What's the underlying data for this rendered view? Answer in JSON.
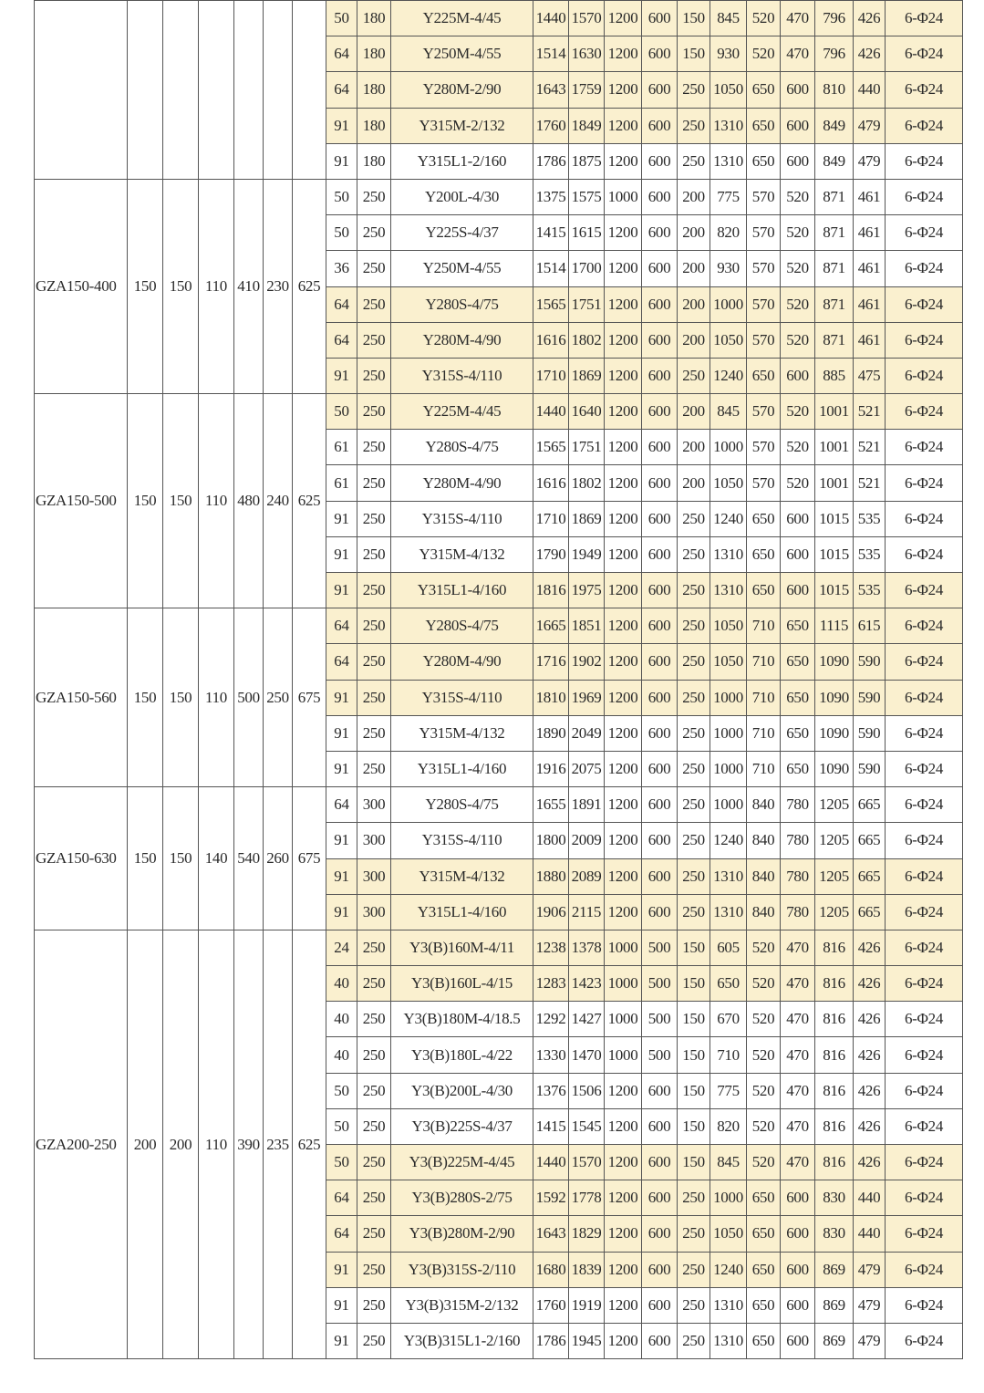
{
  "highlight_color": "#faf0cf",
  "groups": [
    {
      "model": "",
      "left": [
        "",
        "",
        "",
        "",
        "",
        ""
      ],
      "rows": [
        {
          "hl": true,
          "cells": [
            "50",
            "180",
            "Y225M-4/45",
            "1440",
            "1570",
            "1200",
            "600",
            "150",
            "845",
            "520",
            "470",
            "796",
            "426",
            "6-Φ24"
          ]
        },
        {
          "hl": true,
          "cells": [
            "64",
            "180",
            "Y250M-4/55",
            "1514",
            "1630",
            "1200",
            "600",
            "150",
            "930",
            "520",
            "470",
            "796",
            "426",
            "6-Φ24"
          ]
        },
        {
          "hl": true,
          "cells": [
            "64",
            "180",
            "Y280M-2/90",
            "1643",
            "1759",
            "1200",
            "600",
            "250",
            "1050",
            "650",
            "600",
            "810",
            "440",
            "6-Φ24"
          ]
        },
        {
          "hl": true,
          "cells": [
            "91",
            "180",
            "Y315M-2/132",
            "1760",
            "1849",
            "1200",
            "600",
            "250",
            "1310",
            "650",
            "600",
            "849",
            "479",
            "6-Φ24"
          ]
        },
        {
          "hl": false,
          "cells": [
            "91",
            "180",
            "Y315L1-2/160",
            "1786",
            "1875",
            "1200",
            "600",
            "250",
            "1310",
            "650",
            "600",
            "849",
            "479",
            "6-Φ24"
          ]
        }
      ]
    },
    {
      "model": "GZA150-400",
      "left": [
        "150",
        "150",
        "110",
        "410",
        "230",
        "625"
      ],
      "rows": [
        {
          "hl": false,
          "cells": [
            "50",
            "250",
            "Y200L-4/30",
            "1375",
            "1575",
            "1000",
            "600",
            "200",
            "775",
            "570",
            "520",
            "871",
            "461",
            "6-Φ24"
          ]
        },
        {
          "hl": false,
          "cells": [
            "50",
            "250",
            "Y225S-4/37",
            "1415",
            "1615",
            "1200",
            "600",
            "200",
            "820",
            "570",
            "520",
            "871",
            "461",
            "6-Φ24"
          ]
        },
        {
          "hl": false,
          "cells": [
            "36",
            "250",
            "Y250M-4/55",
            "1514",
            "1700",
            "1200",
            "600",
            "200",
            "930",
            "570",
            "520",
            "871",
            "461",
            "6-Φ24"
          ]
        },
        {
          "hl": true,
          "cells": [
            "64",
            "250",
            "Y280S-4/75",
            "1565",
            "1751",
            "1200",
            "600",
            "200",
            "1000",
            "570",
            "520",
            "871",
            "461",
            "6-Φ24"
          ]
        },
        {
          "hl": true,
          "cells": [
            "64",
            "250",
            "Y280M-4/90",
            "1616",
            "1802",
            "1200",
            "600",
            "200",
            "1050",
            "570",
            "520",
            "871",
            "461",
            "6-Φ24"
          ]
        },
        {
          "hl": true,
          "cells": [
            "91",
            "250",
            "Y315S-4/110",
            "1710",
            "1869",
            "1200",
            "600",
            "250",
            "1240",
            "650",
            "600",
            "885",
            "475",
            "6-Φ24"
          ]
        }
      ]
    },
    {
      "model": "GZA150-500",
      "left": [
        "150",
        "150",
        "110",
        "480",
        "240",
        "625"
      ],
      "rows": [
        {
          "hl": true,
          "cells": [
            "50",
            "250",
            "Y225M-4/45",
            "1440",
            "1640",
            "1200",
            "600",
            "200",
            "845",
            "570",
            "520",
            "1001",
            "521",
            "6-Φ24"
          ]
        },
        {
          "hl": false,
          "cells": [
            "61",
            "250",
            "Y280S-4/75",
            "1565",
            "1751",
            "1200",
            "600",
            "200",
            "1000",
            "570",
            "520",
            "1001",
            "521",
            "6-Φ24"
          ]
        },
        {
          "hl": false,
          "cells": [
            "61",
            "250",
            "Y280M-4/90",
            "1616",
            "1802",
            "1200",
            "600",
            "200",
            "1050",
            "570",
            "520",
            "1001",
            "521",
            "6-Φ24"
          ]
        },
        {
          "hl": false,
          "cells": [
            "91",
            "250",
            "Y315S-4/110",
            "1710",
            "1869",
            "1200",
            "600",
            "250",
            "1240",
            "650",
            "600",
            "1015",
            "535",
            "6-Φ24"
          ]
        },
        {
          "hl": false,
          "cells": [
            "91",
            "250",
            "Y315M-4/132",
            "1790",
            "1949",
            "1200",
            "600",
            "250",
            "1310",
            "650",
            "600",
            "1015",
            "535",
            "6-Φ24"
          ]
        },
        {
          "hl": true,
          "cells": [
            "91",
            "250",
            "Y315L1-4/160",
            "1816",
            "1975",
            "1200",
            "600",
            "250",
            "1310",
            "650",
            "600",
            "1015",
            "535",
            "6-Φ24"
          ]
        }
      ]
    },
    {
      "model": "GZA150-560",
      "left": [
        "150",
        "150",
        "110",
        "500",
        "250",
        "675"
      ],
      "rows": [
        {
          "hl": true,
          "cells": [
            "64",
            "250",
            "Y280S-4/75",
            "1665",
            "1851",
            "1200",
            "600",
            "250",
            "1050",
            "710",
            "650",
            "1115",
            "615",
            "6-Φ24"
          ]
        },
        {
          "hl": true,
          "cells": [
            "64",
            "250",
            "Y280M-4/90",
            "1716",
            "1902",
            "1200",
            "600",
            "250",
            "1050",
            "710",
            "650",
            "1090",
            "590",
            "6-Φ24"
          ]
        },
        {
          "hl": true,
          "cells": [
            "91",
            "250",
            "Y315S-4/110",
            "1810",
            "1969",
            "1200",
            "600",
            "250",
            "1000",
            "710",
            "650",
            "1090",
            "590",
            "6-Φ24"
          ]
        },
        {
          "hl": false,
          "cells": [
            "91",
            "250",
            "Y315M-4/132",
            "1890",
            "2049",
            "1200",
            "600",
            "250",
            "1000",
            "710",
            "650",
            "1090",
            "590",
            "6-Φ24"
          ]
        },
        {
          "hl": false,
          "cells": [
            "91",
            "250",
            "Y315L1-4/160",
            "1916",
            "2075",
            "1200",
            "600",
            "250",
            "1000",
            "710",
            "650",
            "1090",
            "590",
            "6-Φ24"
          ]
        }
      ]
    },
    {
      "model": "GZA150-630",
      "left": [
        "150",
        "150",
        "140",
        "540",
        "260",
        "675"
      ],
      "rows": [
        {
          "hl": false,
          "cells": [
            "64",
            "300",
            "Y280S-4/75",
            "1655",
            "1891",
            "1200",
            "600",
            "250",
            "1000",
            "840",
            "780",
            "1205",
            "665",
            "6-Φ24"
          ]
        },
        {
          "hl": false,
          "cells": [
            "91",
            "300",
            "Y315S-4/110",
            "1800",
            "2009",
            "1200",
            "600",
            "250",
            "1240",
            "840",
            "780",
            "1205",
            "665",
            "6-Φ24"
          ]
        },
        {
          "hl": true,
          "cells": [
            "91",
            "300",
            "Y315M-4/132",
            "1880",
            "2089",
            "1200",
            "600",
            "250",
            "1310",
            "840",
            "780",
            "1205",
            "665",
            "6-Φ24"
          ]
        },
        {
          "hl": true,
          "cells": [
            "91",
            "300",
            "Y315L1-4/160",
            "1906",
            "2115",
            "1200",
            "600",
            "250",
            "1310",
            "840",
            "780",
            "1205",
            "665",
            "6-Φ24"
          ]
        }
      ]
    },
    {
      "model": "GZA200-250",
      "left": [
        "200",
        "200",
        "110",
        "390",
        "235",
        "625"
      ],
      "rows": [
        {
          "hl": true,
          "cells": [
            "24",
            "250",
            "Y3(B)160M-4/11",
            "1238",
            "1378",
            "1000",
            "500",
            "150",
            "605",
            "520",
            "470",
            "816",
            "426",
            "6-Φ24"
          ]
        },
        {
          "hl": true,
          "cells": [
            "40",
            "250",
            "Y3(B)160L-4/15",
            "1283",
            "1423",
            "1000",
            "500",
            "150",
            "650",
            "520",
            "470",
            "816",
            "426",
            "6-Φ24"
          ]
        },
        {
          "hl": false,
          "cells": [
            "40",
            "250",
            "Y3(B)180M-4/18.5",
            "1292",
            "1427",
            "1000",
            "500",
            "150",
            "670",
            "520",
            "470",
            "816",
            "426",
            "6-Φ24"
          ]
        },
        {
          "hl": false,
          "cells": [
            "40",
            "250",
            "Y3(B)180L-4/22",
            "1330",
            "1470",
            "1000",
            "500",
            "150",
            "710",
            "520",
            "470",
            "816",
            "426",
            "6-Φ24"
          ]
        },
        {
          "hl": false,
          "cells": [
            "50",
            "250",
            "Y3(B)200L-4/30",
            "1376",
            "1506",
            "1200",
            "600",
            "150",
            "775",
            "520",
            "470",
            "816",
            "426",
            "6-Φ24"
          ]
        },
        {
          "hl": false,
          "cells": [
            "50",
            "250",
            "Y3(B)225S-4/37",
            "1415",
            "1545",
            "1200",
            "600",
            "150",
            "820",
            "520",
            "470",
            "816",
            "426",
            "6-Φ24"
          ]
        },
        {
          "hl": true,
          "cells": [
            "50",
            "250",
            "Y3(B)225M-4/45",
            "1440",
            "1570",
            "1200",
            "600",
            "150",
            "845",
            "520",
            "470",
            "816",
            "426",
            "6-Φ24"
          ]
        },
        {
          "hl": true,
          "cells": [
            "64",
            "250",
            "Y3(B)280S-2/75",
            "1592",
            "1778",
            "1200",
            "600",
            "250",
            "1000",
            "650",
            "600",
            "830",
            "440",
            "6-Φ24"
          ]
        },
        {
          "hl": true,
          "cells": [
            "64",
            "250",
            "Y3(B)280M-2/90",
            "1643",
            "1829",
            "1200",
            "600",
            "250",
            "1050",
            "650",
            "600",
            "830",
            "440",
            "6-Φ24"
          ]
        },
        {
          "hl": true,
          "cells": [
            "91",
            "250",
            "Y3(B)315S-2/110",
            "1680",
            "1839",
            "1200",
            "600",
            "250",
            "1240",
            "650",
            "600",
            "869",
            "479",
            "6-Φ24"
          ]
        },
        {
          "hl": false,
          "cells": [
            "91",
            "250",
            "Y3(B)315M-2/132",
            "1760",
            "1919",
            "1200",
            "600",
            "250",
            "1310",
            "650",
            "600",
            "869",
            "479",
            "6-Φ24"
          ]
        },
        {
          "hl": false,
          "cells": [
            "91",
            "250",
            "Y3(B)315L1-2/160",
            "1786",
            "1945",
            "1200",
            "600",
            "250",
            "1310",
            "650",
            "600",
            "869",
            "479",
            "6-Φ24"
          ]
        }
      ]
    }
  ]
}
